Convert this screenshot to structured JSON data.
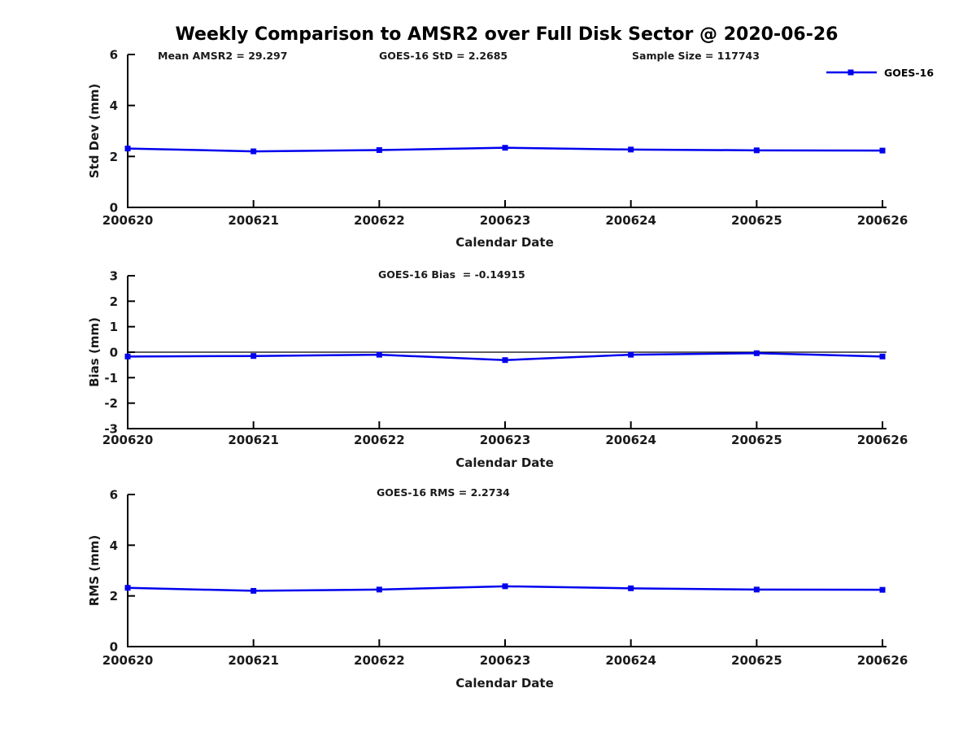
{
  "title": "Weekly Comparison to AMSR2 over Full Disk Sector @ 2020-06-26",
  "colors": {
    "series": "#0000EE",
    "axis": "#000000",
    "text": "#1a1a1a"
  },
  "chart_data": [
    {
      "type": "line",
      "panel": "std-dev",
      "categories": [
        "200620",
        "200621",
        "200622",
        "200623",
        "200624",
        "200625",
        "200626"
      ],
      "series": [
        {
          "name": "GOES-16",
          "values": [
            2.31,
            2.2,
            2.25,
            2.34,
            2.27,
            2.24,
            2.23
          ]
        }
      ],
      "xlabel": "Calendar Date",
      "ylabel": "Std Dev (mm)",
      "ylim": [
        0,
        6
      ],
      "yticks": [
        0,
        2,
        4,
        6
      ],
      "grid": false,
      "legend_position": "top-right",
      "annotations": [
        "Mean AMSR2 = 29.297",
        "GOES-16 StD = 2.2685",
        "Sample Size = 117743"
      ]
    },
    {
      "type": "line",
      "panel": "bias",
      "subtitle": "GOES-16 Bias  = -0.14915",
      "categories": [
        "200620",
        "200621",
        "200622",
        "200623",
        "200624",
        "200625",
        "200626"
      ],
      "series": [
        {
          "name": "GOES-16",
          "values": [
            -0.17,
            -0.15,
            -0.1,
            -0.31,
            -0.1,
            -0.04,
            -0.17
          ]
        }
      ],
      "xlabel": "Calendar Date",
      "ylabel": "Bias (mm)",
      "ylim": [
        -3,
        3
      ],
      "yticks": [
        -3,
        -2,
        -1,
        0,
        1,
        2,
        3
      ],
      "grid": false,
      "zero_line": true
    },
    {
      "type": "line",
      "panel": "rms",
      "subtitle": "GOES-16 RMS = 2.2734",
      "categories": [
        "200620",
        "200621",
        "200622",
        "200623",
        "200624",
        "200625",
        "200626"
      ],
      "series": [
        {
          "name": "GOES-16",
          "values": [
            2.32,
            2.2,
            2.25,
            2.38,
            2.3,
            2.25,
            2.24
          ]
        }
      ],
      "xlabel": "Calendar Date",
      "ylabel": "RMS (mm)",
      "ylim": [
        0,
        6
      ],
      "yticks": [
        0,
        2,
        4,
        6
      ],
      "grid": false
    }
  ]
}
